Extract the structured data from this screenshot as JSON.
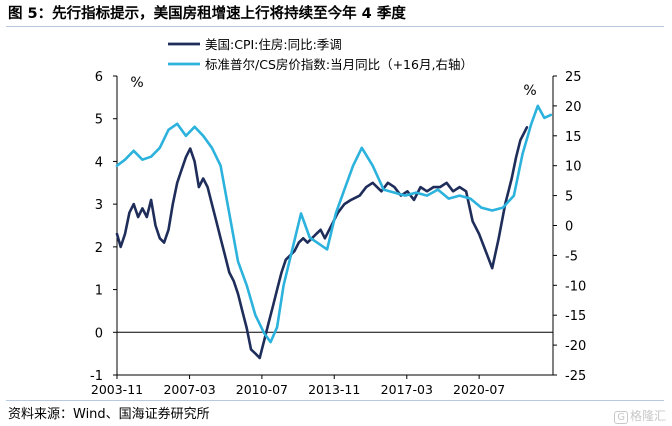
{
  "header": {
    "title": "图 5：先行指标提示，美国房租增速上行将持续至今年 4 季度"
  },
  "footer": {
    "source": "资料来源：Wind、国海证券研究所"
  },
  "watermark": {
    "logo_text": "G",
    "label": "格隆汇",
    "icon": "gelonghui-logo-icon"
  },
  "chart_data": {
    "type": "line",
    "title": "",
    "x_tick_labels": [
      "2003-11",
      "2007-03",
      "2010-07",
      "2013-11",
      "2017-03",
      "2020-07"
    ],
    "x_tick_years": [
      2003.83,
      2007.17,
      2010.5,
      2013.83,
      2017.17,
      2020.5
    ],
    "xlim": [
      2003.83,
      2023.9
    ],
    "y_left": {
      "unit": "%",
      "ylim": [
        -1,
        6
      ],
      "ticks": [
        -1,
        0,
        1,
        2,
        3,
        4,
        5,
        6
      ]
    },
    "y_right": {
      "unit": "%",
      "ylim": [
        -25,
        25
      ],
      "ticks": [
        -25,
        -20,
        -15,
        -10,
        -5,
        0,
        5,
        10,
        15,
        20,
        25
      ]
    },
    "legend_position": "top-center",
    "series": [
      {
        "name": "美国:CPI:住房:同比:季调",
        "axis": "left",
        "color": "#1f2d5a",
        "x": [
          2003.83,
          2004.0,
          2004.2,
          2004.4,
          2004.6,
          2004.8,
          2005.0,
          2005.2,
          2005.4,
          2005.6,
          2005.8,
          2006.0,
          2006.2,
          2006.4,
          2006.6,
          2006.8,
          2007.0,
          2007.2,
          2007.4,
          2007.6,
          2007.8,
          2008.0,
          2008.2,
          2008.4,
          2008.6,
          2008.8,
          2009.0,
          2009.2,
          2009.4,
          2009.6,
          2009.8,
          2010.0,
          2010.2,
          2010.4,
          2010.6,
          2010.8,
          2011.0,
          2011.2,
          2011.4,
          2011.6,
          2011.8,
          2012.0,
          2012.2,
          2012.4,
          2012.6,
          2012.8,
          2013.0,
          2013.2,
          2013.4,
          2013.6,
          2013.8,
          2014.0,
          2014.3,
          2014.6,
          2015.0,
          2015.3,
          2015.6,
          2016.0,
          2016.3,
          2016.6,
          2016.9,
          2017.2,
          2017.5,
          2017.8,
          2018.1,
          2018.4,
          2018.7,
          2019.0,
          2019.3,
          2019.6,
          2019.9,
          2020.2,
          2020.5,
          2020.8,
          2021.1,
          2021.4,
          2021.7,
          2022.0,
          2022.2,
          2022.4,
          2022.6,
          2022.7
        ],
        "y": [
          2.3,
          2.0,
          2.3,
          2.8,
          3.0,
          2.7,
          2.9,
          2.7,
          3.1,
          2.5,
          2.2,
          2.1,
          2.4,
          3.0,
          3.5,
          3.8,
          4.1,
          4.3,
          4.0,
          3.4,
          3.6,
          3.4,
          3.0,
          2.6,
          2.2,
          1.8,
          1.4,
          1.2,
          0.9,
          0.5,
          0.1,
          -0.4,
          -0.5,
          -0.6,
          -0.2,
          0.2,
          0.6,
          1.0,
          1.4,
          1.7,
          1.8,
          1.9,
          2.1,
          2.2,
          2.1,
          2.2,
          2.3,
          2.4,
          2.2,
          2.4,
          2.6,
          2.8,
          3.0,
          3.1,
          3.2,
          3.4,
          3.5,
          3.3,
          3.5,
          3.4,
          3.2,
          3.3,
          3.1,
          3.4,
          3.3,
          3.4,
          3.4,
          3.5,
          3.3,
          3.4,
          3.3,
          2.6,
          2.3,
          1.9,
          1.5,
          2.2,
          3.0,
          3.6,
          4.1,
          4.5,
          4.7,
          4.8
        ]
      },
      {
        "name": "标准普尔/CS房价指数:当月同比（+16月,右轴）",
        "axis": "right",
        "color": "#2bb2dd",
        "x": [
          2003.83,
          2004.2,
          2004.6,
          2005.0,
          2005.4,
          2005.8,
          2006.2,
          2006.6,
          2007.0,
          2007.4,
          2007.8,
          2008.2,
          2008.6,
          2009.0,
          2009.4,
          2009.8,
          2010.2,
          2010.6,
          2010.9,
          2011.2,
          2011.5,
          2011.9,
          2012.3,
          2012.7,
          2013.1,
          2013.5,
          2013.9,
          2014.3,
          2014.7,
          2015.1,
          2015.6,
          2016.1,
          2016.6,
          2017.1,
          2017.6,
          2018.1,
          2018.6,
          2019.1,
          2019.6,
          2020.1,
          2020.6,
          2021.1,
          2021.6,
          2022.1,
          2022.5,
          2022.9,
          2023.2,
          2023.5,
          2023.8
        ],
        "y": [
          10,
          11,
          12.5,
          11,
          11.5,
          13,
          16,
          17,
          15,
          16.5,
          15,
          13,
          10,
          2,
          -6,
          -10,
          -15,
          -18,
          -19.5,
          -17,
          -10,
          -4,
          2,
          -2,
          -3,
          -4,
          2,
          6,
          10,
          13,
          10,
          6,
          5.5,
          5,
          5.5,
          5,
          6,
          4.5,
          5,
          4.5,
          3,
          2.5,
          3,
          5,
          12,
          17,
          20,
          18,
          18.5
        ]
      }
    ]
  }
}
